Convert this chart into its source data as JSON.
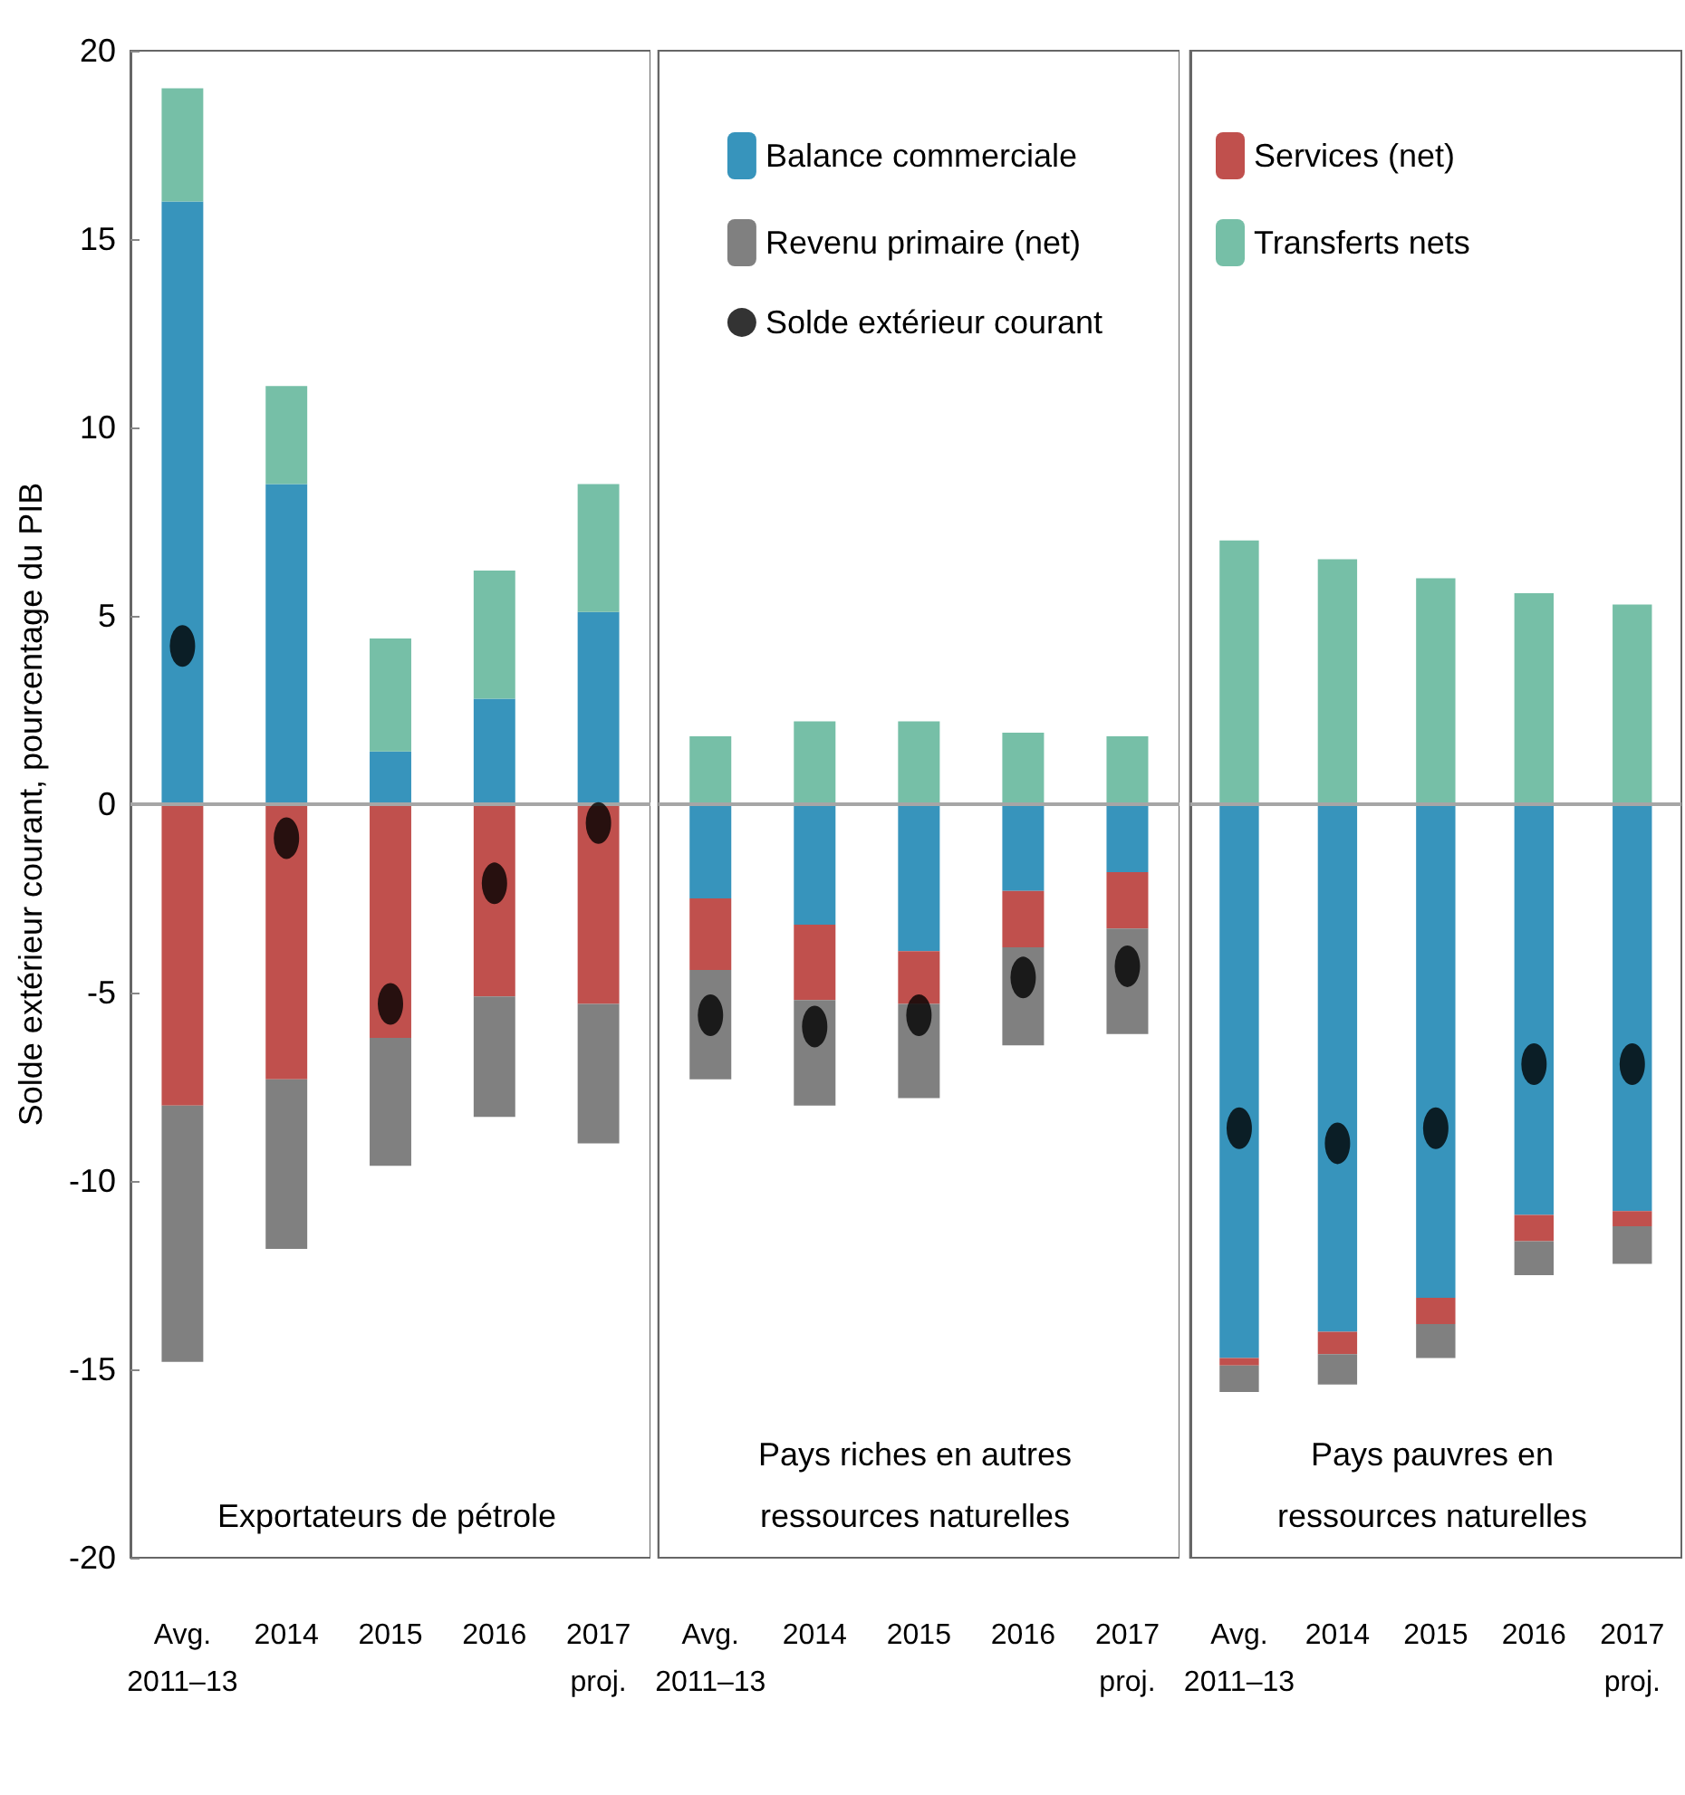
{
  "chart_data": [
    {
      "type": "bar",
      "stacked": true,
      "ylabel": "Solde extérieur courant, pourcentage du PIB",
      "annotations": [
        "Exportateurs de pétrole"
      ],
      "categories": [
        "Avg.\n2011–13",
        "2014",
        "2015",
        "2016",
        "2017\nproj."
      ],
      "ylim": [
        -20,
        20
      ],
      "yticks": [
        -20,
        -15,
        -10,
        -5,
        0,
        5,
        10,
        15,
        20
      ],
      "grid": false,
      "legend": false,
      "ref_lines": [
        {
          "axis": "y",
          "value": 0,
          "color": "#a6a6a6"
        }
      ],
      "series": [
        {
          "color": "#3794bc",
          "values": [
            16.0,
            8.5,
            1.4,
            2.8,
            5.1
          ]
        },
        {
          "color": "#c0504d",
          "values": [
            -8.0,
            -7.3,
            -6.2,
            -5.1,
            -5.3
          ]
        },
        {
          "color": "#808080",
          "values": [
            -6.8,
            -4.5,
            -3.4,
            -3.2,
            -3.7
          ]
        },
        {
          "color": "#76bfa7",
          "values": [
            3.0,
            2.6,
            3.0,
            3.4,
            3.4
          ]
        },
        {
          "type": "scatter",
          "marker": "circle",
          "color": "#000000",
          "values": [
            4.2,
            -0.9,
            -5.3,
            -2.1,
            -0.5
          ]
        }
      ]
    },
    {
      "type": "bar",
      "stacked": true,
      "annotations": [
        "Pays riches en autres\nressources naturelles"
      ],
      "tick_labels": "x",
      "categories": [
        "Avg.\n2011–13",
        "2014",
        "2015",
        "2016",
        "2017\nproj."
      ],
      "ylim": [
        -20,
        20
      ],
      "grid": false,
      "legend": "top",
      "ref_lines": [
        {
          "axis": "y",
          "value": 0,
          "color": "#a6a6a6"
        }
      ],
      "series": [
        {
          "name": "Balance commerciale",
          "color": "#3794bc",
          "values": [
            -2.5,
            -3.2,
            -3.9,
            -2.3,
            -1.8
          ]
        },
        {
          "color": "#c0504d",
          "values": [
            -1.9,
            -2.0,
            -1.4,
            -1.5,
            -1.5
          ]
        },
        {
          "name": "Revenu primaire (net)",
          "color": "#808080",
          "values": [
            -2.9,
            -2.8,
            -2.5,
            -2.6,
            -2.8
          ]
        },
        {
          "color": "#76bfa7",
          "values": [
            1.8,
            2.2,
            2.2,
            1.9,
            1.8
          ]
        },
        {
          "name": "Solde extérieur courant",
          "type": "scatter",
          "marker": "circle",
          "color": "#000000",
          "values": [
            -5.6,
            -5.9,
            -5.6,
            -4.6,
            -4.3
          ]
        }
      ]
    },
    {
      "type": "bar",
      "stacked": true,
      "annotations": [
        "Pays pauvres en\nressources naturelles"
      ],
      "tick_labels": "x",
      "categories": [
        "Avg.\n2011–13",
        "2014",
        "2015",
        "2016",
        "2017\nproj."
      ],
      "ylim": [
        -20,
        20
      ],
      "grid": false,
      "legend": "top left",
      "ref_lines": [
        {
          "axis": "y",
          "value": 0,
          "color": "#a6a6a6"
        }
      ],
      "series": [
        {
          "color": "#3794bc",
          "values": [
            -14.7,
            -14.0,
            -13.1,
            -10.9,
            -10.8
          ]
        },
        {
          "name": "Services (net)",
          "color": "#c0504d",
          "values": [
            -0.2,
            -0.6,
            -0.7,
            -0.7,
            -0.4
          ]
        },
        {
          "color": "#808080",
          "values": [
            -0.7,
            -0.8,
            -0.9,
            -0.9,
            -1.0
          ]
        },
        {
          "name": "Transferts nets",
          "color": "#76bfa7",
          "values": [
            7.0,
            6.5,
            6.0,
            5.6,
            5.3
          ]
        },
        {
          "type": "scatter",
          "marker": "circle",
          "color": "#000000",
          "values": [
            -8.6,
            -9.0,
            -8.6,
            -6.9,
            -6.9
          ]
        }
      ]
    }
  ]
}
